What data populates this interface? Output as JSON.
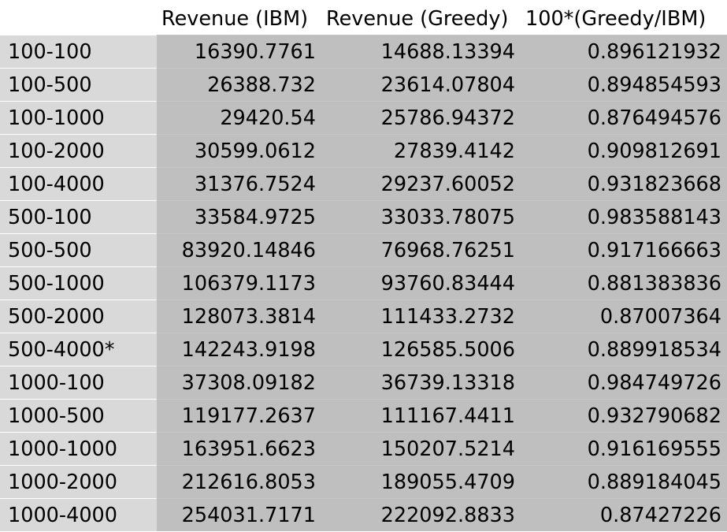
{
  "table": {
    "headers": [
      "",
      "Revenue (IBM)",
      "Revenue (Greedy)",
      "100*(Greedy/IBM)"
    ],
    "rows": [
      {
        "label": "100-100",
        "ibm": "16390.7761",
        "greedy": "14688.13394",
        "ratio": "0.896121932"
      },
      {
        "label": "100-500",
        "ibm": "26388.732",
        "greedy": "23614.07804",
        "ratio": "0.894854593"
      },
      {
        "label": "100-1000",
        "ibm": "29420.54",
        "greedy": "25786.94372",
        "ratio": "0.876494576"
      },
      {
        "label": "100-2000",
        "ibm": "30599.0612",
        "greedy": "27839.4142",
        "ratio": "0.909812691"
      },
      {
        "label": "100-4000",
        "ibm": "31376.7524",
        "greedy": "29237.60052",
        "ratio": "0.931823668"
      },
      {
        "label": "500-100",
        "ibm": "33584.9725",
        "greedy": "33033.78075",
        "ratio": "0.983588143"
      },
      {
        "label": "500-500",
        "ibm": "83920.14846",
        "greedy": "76968.76251",
        "ratio": "0.917166663"
      },
      {
        "label": "500-1000",
        "ibm": "106379.1173",
        "greedy": "93760.83444",
        "ratio": "0.881383836"
      },
      {
        "label": "500-2000",
        "ibm": "128073.3814",
        "greedy": "111433.2732",
        "ratio": "0.87007364"
      },
      {
        "label": "500-4000*",
        "ibm": "142243.9198",
        "greedy": "126585.5006",
        "ratio": "0.889918534"
      },
      {
        "label": "1000-100",
        "ibm": "37308.09182",
        "greedy": "36739.13318",
        "ratio": "0.984749726"
      },
      {
        "label": "1000-500",
        "ibm": "119177.2637",
        "greedy": "111167.4411",
        "ratio": "0.932790682"
      },
      {
        "label": "1000-1000",
        "ibm": "163951.6623",
        "greedy": "150207.5214",
        "ratio": "0.916169555"
      },
      {
        "label": "1000-2000",
        "ibm": "212616.8053",
        "greedy": "189055.4709",
        "ratio": "0.889184045"
      },
      {
        "label": "1000-4000",
        "ibm": "254031.7171",
        "greedy": "222092.8833",
        "ratio": "0.87427226"
      }
    ]
  },
  "colors": {
    "label_fill": "#d9d9d9",
    "value_fill": "#bfbfbf",
    "header_fill": "#ffffff"
  }
}
